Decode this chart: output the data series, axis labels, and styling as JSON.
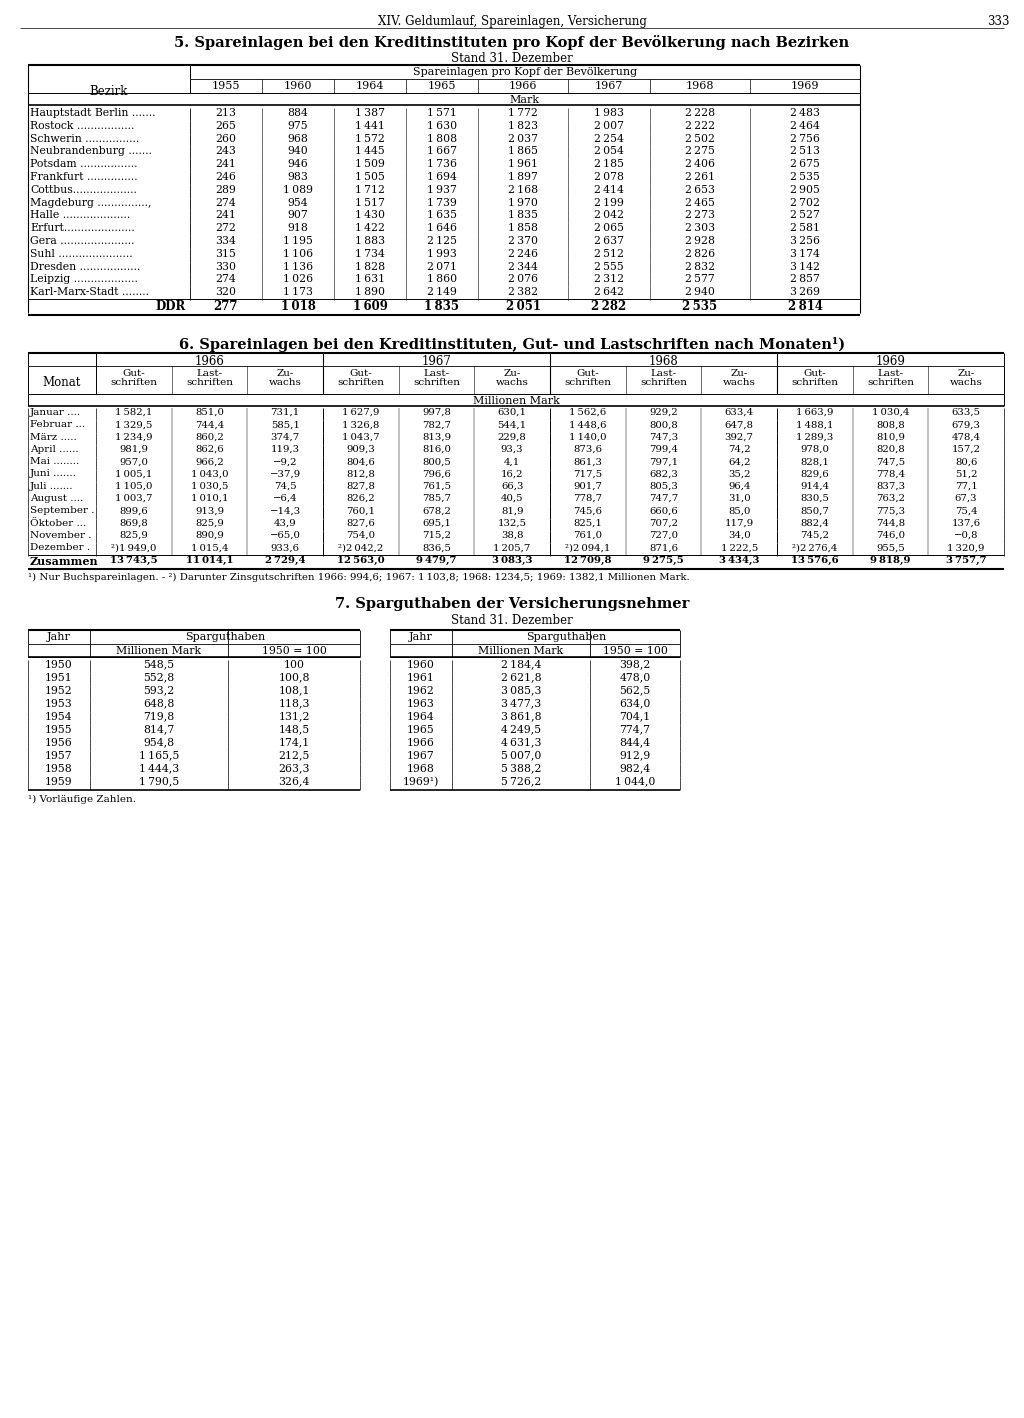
{
  "page_header": "XIV. Geldumlauf, Spareinlagen, Versicherung",
  "page_number": "333",
  "table1_title": "5. Spareinlagen bei den Kreditinstituten pro Kopf der Bevölkerung nach Bezirken",
  "table1_subtitle": "Stand 31. Dezember",
  "table1_col_header": "Spareinlagen pro Kopf der Bevölkerung",
  "table1_unit": "Mark",
  "table1_years": [
    "1955",
    "1960",
    "1964",
    "1965",
    "1966",
    "1967",
    "1968",
    "1969"
  ],
  "table1_rows": [
    [
      "Hauptstadt Berlin .......",
      213,
      884,
      1387,
      1571,
      1772,
      1983,
      2228,
      2483
    ],
    [
      "Rostock .................",
      265,
      975,
      1441,
      1630,
      1823,
      2007,
      2222,
      2464
    ],
    [
      "Schwerin ................",
      260,
      968,
      1572,
      1808,
      2037,
      2254,
      2502,
      2756
    ],
    [
      "Neubrandenburg .......",
      243,
      940,
      1445,
      1667,
      1865,
      2054,
      2275,
      2513
    ],
    [
      "Potsdam .................",
      241,
      946,
      1509,
      1736,
      1961,
      2185,
      2406,
      2675
    ],
    [
      "Frankfurt ...............",
      246,
      983,
      1505,
      1694,
      1897,
      2078,
      2261,
      2535
    ],
    [
      "Cottbus...................",
      289,
      1089,
      1712,
      1937,
      2168,
      2414,
      2653,
      2905
    ],
    [
      "Magdeburg ...............,",
      274,
      954,
      1517,
      1739,
      1970,
      2199,
      2465,
      2702
    ],
    [
      "Halle ....................",
      241,
      907,
      1430,
      1635,
      1835,
      2042,
      2273,
      2527
    ],
    [
      "Erfurt.....................",
      272,
      918,
      1422,
      1646,
      1858,
      2065,
      2303,
      2581
    ],
    [
      "Gera ......................",
      334,
      1195,
      1883,
      2125,
      2370,
      2637,
      2928,
      3256
    ],
    [
      "Suhl ......................",
      315,
      1106,
      1734,
      1993,
      2246,
      2512,
      2826,
      3174
    ],
    [
      "Dresden ..................",
      330,
      1136,
      1828,
      2071,
      2344,
      2555,
      2832,
      3142
    ],
    [
      "Leipzig ...................",
      274,
      1026,
      1631,
      1860,
      2076,
      2312,
      2577,
      2857
    ],
    [
      "Karl-Marx-Stadt ........",
      320,
      1173,
      1890,
      2149,
      2382,
      2642,
      2940,
      3269
    ]
  ],
  "table1_ddr": [
    277,
    1018,
    1609,
    1835,
    2051,
    2282,
    2535,
    2814
  ],
  "table2_title": "6. Spareinlagen bei den Kreditinstituten, Gut- und Lastschriften nach Monaten¹)",
  "table2_years": [
    "1966",
    "1967",
    "1968",
    "1969"
  ],
  "table2_unit": "Millionen Mark",
  "table2_note1": "¹) Nur Buchspareinlagen. - ²) Darunter Zinsgutschriften 1966: 994,6; 1967: 1 103,8; 1968: 1234,5; 1969: 1382,1 Millionen Mark.",
  "table3_title": "7. Sparguthaben der Versicherungsnehmer",
  "table3_subtitle": "Stand 31. Dezember",
  "table3_note": "¹) Vorläufige Zahlen.",
  "table3_left": [
    [
      "1950",
      "548,5",
      "100"
    ],
    [
      "1951",
      "552,8",
      "100,8"
    ],
    [
      "1952",
      "593,2",
      "108,1"
    ],
    [
      "1953",
      "648,8",
      "118,3"
    ],
    [
      "1954",
      "719,8",
      "131,2"
    ],
    [
      "1955",
      "814,7",
      "148,5"
    ],
    [
      "1956",
      "954,8",
      "174,1"
    ],
    [
      "1957",
      "1 165,5",
      "212,5"
    ],
    [
      "1958",
      "1 444,3",
      "263,3"
    ],
    [
      "1959",
      "1 790,5",
      "326,4"
    ]
  ],
  "table3_right": [
    [
      "1960",
      "2 184,4",
      "398,2"
    ],
    [
      "1961",
      "2 621,8",
      "478,0"
    ],
    [
      "1962",
      "3 085,3",
      "562,5"
    ],
    [
      "1963",
      "3 477,3",
      "634,0"
    ],
    [
      "1964",
      "3 861,8",
      "704,1"
    ],
    [
      "1965",
      "4 249,5",
      "774,7"
    ],
    [
      "1966",
      "4 631,3",
      "844,4"
    ],
    [
      "1967",
      "5 007,0",
      "912,9"
    ],
    [
      "1968",
      "5 388,2",
      "982,4"
    ],
    [
      "1969¹)",
      "5 726,2",
      "1 044,0"
    ]
  ]
}
